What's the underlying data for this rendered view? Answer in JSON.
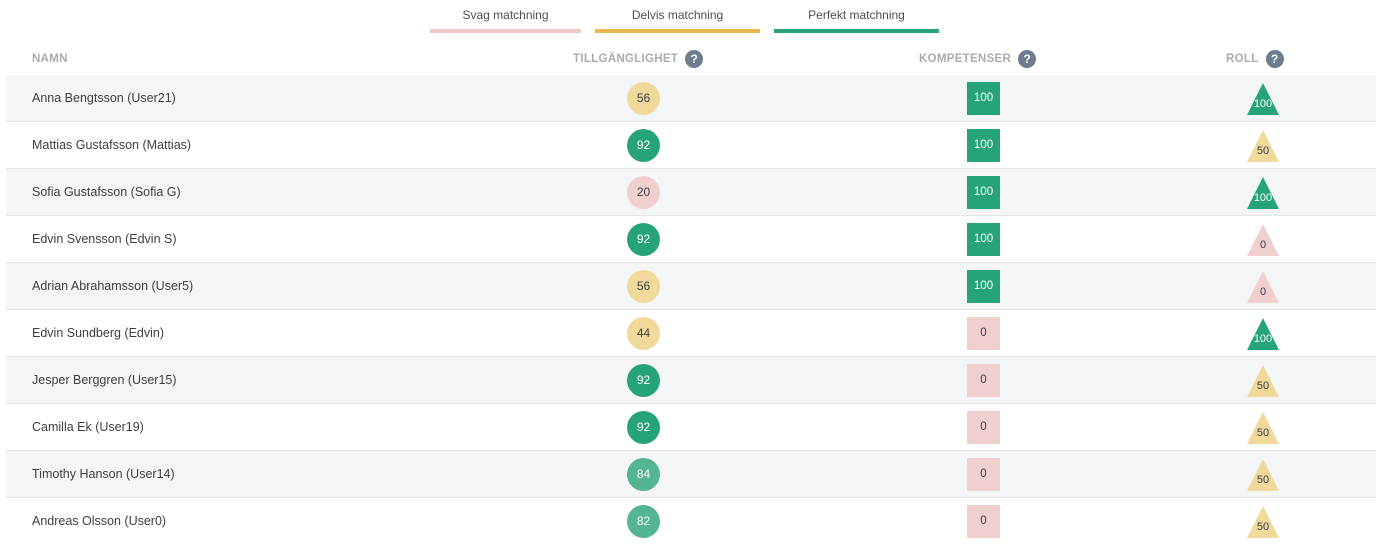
{
  "legend": [
    {
      "label": "Svag matchning",
      "color": "#f0c6c6"
    },
    {
      "label": "Delvis matchning",
      "color": "#e8b84a"
    },
    {
      "label": "Perfekt matchning",
      "color": "#27a37a"
    }
  ],
  "columns": {
    "name": "NAMN",
    "availability": "TILLGÄNGLIGHET",
    "skills": "KOMPETENSER",
    "role": "ROLL",
    "help_glyph": "?"
  },
  "colors": {
    "strong": "#27a37a",
    "strong_light": "#53b592",
    "mid": "#f1d99c",
    "weak": "#f0cfcf",
    "row_alt": "#f4f5f6",
    "help_icon": "#6e7d8e"
  },
  "rows": [
    {
      "name": "Anna Bengtsson (User21)",
      "availability": "56",
      "availability_level": "mid",
      "skills": "100",
      "skills_level": "strong",
      "role": "100",
      "role_level": "strong"
    },
    {
      "name": "Mattias Gustafsson (Mattias)",
      "availability": "92",
      "availability_level": "strong",
      "skills": "100",
      "skills_level": "strong",
      "role": "50",
      "role_level": "mid"
    },
    {
      "name": "Sofia Gustafsson (Sofia G)",
      "availability": "20",
      "availability_level": "weak",
      "skills": "100",
      "skills_level": "strong",
      "role": "100",
      "role_level": "strong"
    },
    {
      "name": "Edvin Svensson (Edvin S)",
      "availability": "92",
      "availability_level": "strong",
      "skills": "100",
      "skills_level": "strong",
      "role": "0",
      "role_level": "weak"
    },
    {
      "name": "Adrian Abrahamsson (User5)",
      "availability": "56",
      "availability_level": "mid",
      "skills": "100",
      "skills_level": "strong",
      "role": "0",
      "role_level": "weak"
    },
    {
      "name": "Edvin Sundberg (Edvin)",
      "availability": "44",
      "availability_level": "mid",
      "skills": "0",
      "skills_level": "weak",
      "role": "100",
      "role_level": "strong"
    },
    {
      "name": "Jesper Berggren (User15)",
      "availability": "92",
      "availability_level": "strong",
      "skills": "0",
      "skills_level": "weak",
      "role": "50",
      "role_level": "mid"
    },
    {
      "name": "Camilla Ek (User19)",
      "availability": "92",
      "availability_level": "strong",
      "skills": "0",
      "skills_level": "weak",
      "role": "50",
      "role_level": "mid"
    },
    {
      "name": "Timothy Hanson (User14)",
      "availability": "84",
      "availability_level": "strong_light",
      "skills": "0",
      "skills_level": "weak",
      "role": "50",
      "role_level": "mid"
    },
    {
      "name": "Andreas Olsson (User0)",
      "availability": "82",
      "availability_level": "strong_light",
      "skills": "0",
      "skills_level": "weak",
      "role": "50",
      "role_level": "mid"
    }
  ]
}
